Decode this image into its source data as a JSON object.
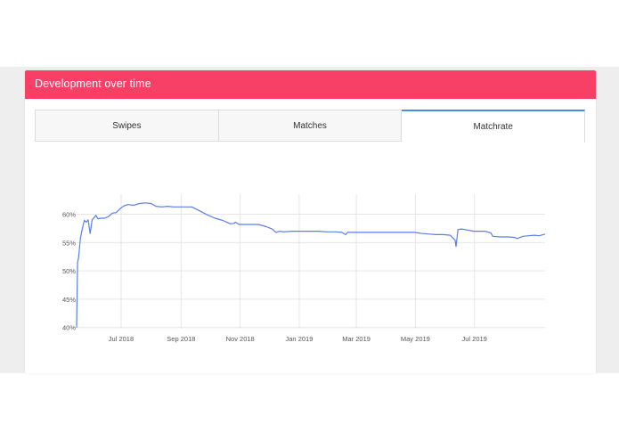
{
  "card": {
    "title": "Development over time"
  },
  "tabs": [
    {
      "label": "Swipes",
      "active": false
    },
    {
      "label": "Matches",
      "active": false
    },
    {
      "label": "Matchrate",
      "active": true
    }
  ],
  "colors": {
    "header": "#f83f66",
    "line": "#5b7ee8",
    "active_tab_border": "#4a90e2"
  },
  "chart_data": {
    "type": "line",
    "title": "",
    "xlabel": "",
    "ylabel": "",
    "grid": true,
    "y_ticks": [
      40,
      45,
      50,
      55,
      60
    ],
    "y_tick_labels": [
      "40%",
      "45%",
      "50%",
      "55%",
      "60%"
    ],
    "ylim": [
      39.8,
      62.6
    ],
    "x_ticks": [
      "2018-07-01",
      "2018-09-01",
      "2018-11-01",
      "2019-01-01",
      "2019-03-01",
      "2019-05-01",
      "2019-07-01"
    ],
    "x_tick_labels": [
      "Jul 2018",
      "Sep 2018",
      "Nov 2018",
      "Jan 2019",
      "Mar 2019",
      "May 2019",
      "Jul 2019"
    ],
    "xlim": [
      "2018-05-16",
      "2019-09-12"
    ],
    "series": [
      {
        "name": "",
        "x": [
          "2018-05-16",
          "2018-05-17",
          "2018-05-18",
          "2018-05-20",
          "2018-05-22",
          "2018-05-24",
          "2018-05-26",
          "2018-05-28",
          "2018-05-30",
          "2018-06-01",
          "2018-06-03",
          "2018-06-05",
          "2018-06-07",
          "2018-06-10",
          "2018-06-14",
          "2018-06-18",
          "2018-06-22",
          "2018-06-26",
          "2018-06-30",
          "2018-07-04",
          "2018-07-08",
          "2018-07-14",
          "2018-07-20",
          "2018-07-26",
          "2018-08-01",
          "2018-08-06",
          "2018-08-12",
          "2018-08-18",
          "2018-08-24",
          "2018-08-30",
          "2018-09-05",
          "2018-09-12",
          "2018-09-20",
          "2018-09-28",
          "2018-10-06",
          "2018-10-14",
          "2018-10-22",
          "2018-10-26",
          "2018-10-27",
          "2018-10-31",
          "2018-11-05",
          "2018-11-12",
          "2018-11-20",
          "2018-11-28",
          "2018-12-04",
          "2018-12-08",
          "2018-12-12",
          "2018-12-16",
          "2018-12-24",
          "2019-01-01",
          "2019-01-10",
          "2019-01-20",
          "2019-01-30",
          "2019-02-08",
          "2019-02-14",
          "2019-02-18",
          "2019-02-20",
          "2019-02-24",
          "2019-03-05",
          "2019-03-15",
          "2019-03-25",
          "2019-04-04",
          "2019-04-14",
          "2019-04-22",
          "2019-04-30",
          "2019-05-08",
          "2019-05-16",
          "2019-05-22",
          "2019-05-30",
          "2019-06-06",
          "2019-06-10",
          "2019-06-11",
          "2019-06-12",
          "2019-06-14",
          "2019-06-18",
          "2019-06-24",
          "2019-06-30",
          "2019-07-06",
          "2019-07-12",
          "2019-07-18",
          "2019-07-20",
          "2019-07-28",
          "2019-08-05",
          "2019-08-12",
          "2019-08-14",
          "2019-08-20",
          "2019-08-26",
          "2019-09-01",
          "2019-09-06",
          "2019-09-12"
        ],
        "values": [
          40.0,
          51.5,
          52.3,
          55.8,
          57.5,
          58.9,
          58.6,
          59.0,
          56.6,
          59.0,
          59.4,
          59.8,
          59.2,
          59.3,
          59.3,
          59.6,
          60.2,
          60.3,
          61.0,
          61.5,
          61.7,
          61.6,
          61.9,
          62.0,
          61.9,
          61.4,
          61.3,
          61.4,
          61.3,
          61.3,
          61.3,
          61.3,
          60.6,
          59.9,
          59.3,
          58.9,
          58.3,
          58.4,
          58.6,
          58.2,
          58.2,
          58.2,
          58.2,
          57.8,
          57.4,
          56.8,
          57.0,
          56.9,
          57.0,
          57.0,
          57.0,
          57.0,
          56.9,
          56.9,
          56.8,
          56.4,
          56.8,
          56.8,
          56.8,
          56.8,
          56.8,
          56.8,
          56.8,
          56.8,
          56.8,
          56.6,
          56.5,
          56.4,
          56.4,
          56.3,
          55.6,
          55.5,
          54.3,
          57.3,
          57.4,
          57.2,
          57.0,
          57.0,
          57.0,
          56.7,
          56.1,
          56.0,
          56.0,
          55.9,
          55.7,
          56.1,
          56.2,
          56.3,
          56.2,
          56.5
        ]
      }
    ]
  }
}
